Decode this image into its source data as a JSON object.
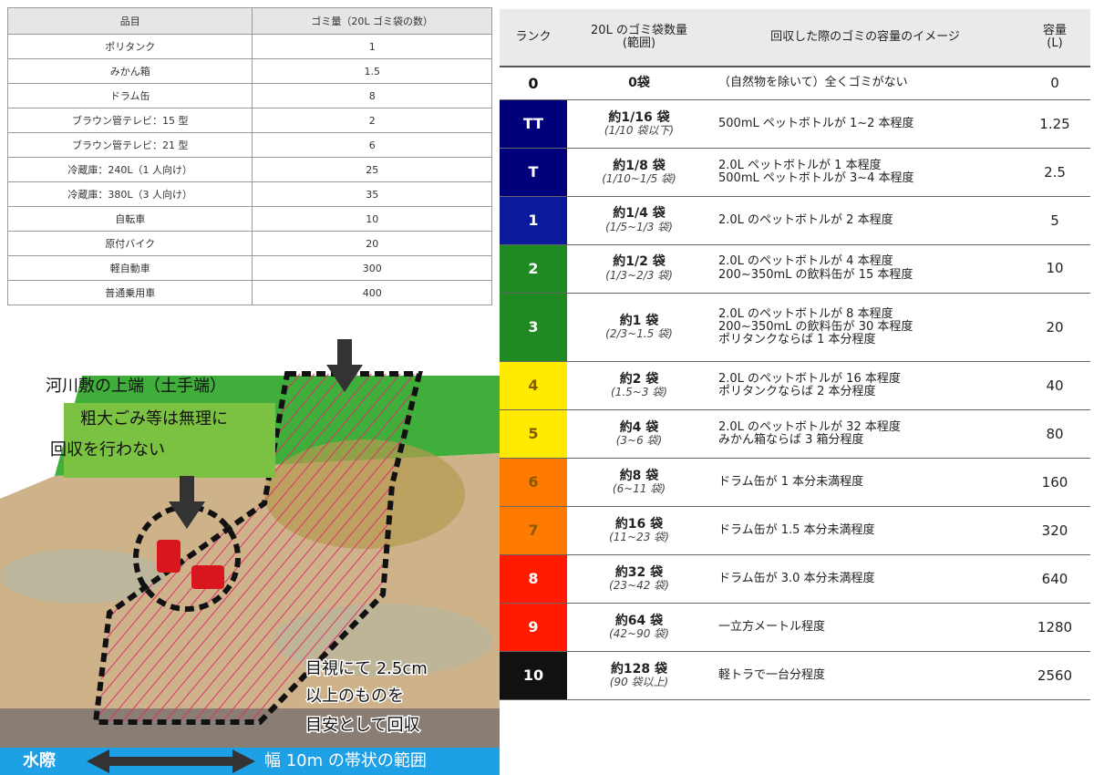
{
  "left_table": {
    "header": [
      "品目",
      "ゴミ量（20L ゴミ袋の数）"
    ],
    "rows": [
      [
        "ポリタンク",
        "1"
      ],
      [
        "みかん箱",
        "1.5"
      ],
      [
        "ドラム缶",
        "8"
      ],
      [
        "ブラウン管テレビ：15 型",
        "2"
      ],
      [
        "ブラウン管テレビ：21 型",
        "6"
      ],
      [
        "冷蔵庫：240L（1 人向け）",
        "25"
      ],
      [
        "冷蔵庫：380L（3 人向け）",
        "35"
      ],
      [
        "自転車",
        "10"
      ],
      [
        "原付バイク",
        "20"
      ],
      [
        "軽自動車",
        "300"
      ],
      [
        "普通乗用車",
        "400"
      ]
    ]
  },
  "right_table": {
    "header": [
      [
        "ランク"
      ],
      [
        "20L のゴミ袋数量",
        "(範囲)"
      ],
      [
        "回収した際のゴミの容量のイメージ"
      ],
      [
        "容量",
        "(L)"
      ]
    ],
    "rows": [
      {
        "rank": "0",
        "bags": "0袋",
        "range": null,
        "description": [
          "（自然物を除いて）全くゴミがない"
        ],
        "capacity": "0",
        "color": "#ffffff"
      },
      {
        "rank": "TT",
        "bags": "約1/16 袋",
        "range": "(1/10 袋以下)",
        "description": [
          "500mL ペットボトルが 1~2 本程度"
        ],
        "capacity": "1.25",
        "color": "#00007a"
      },
      {
        "rank": "T",
        "bags": "約1/8 袋",
        "range": "(1/10~1/5 袋)",
        "description": [
          "2.0L ペットボトルが 1 本程度",
          "500mL ペットボトルが 3~4 本程度"
        ],
        "capacity": "2.5",
        "color": "#00007a"
      },
      {
        "rank": "1",
        "bags": "約1/4 袋",
        "range": "(1/5~1/3 袋)",
        "description": [
          "2.0L のペットボトルが 2 本程度"
        ],
        "capacity": "5",
        "color": "#0b1a9a"
      },
      {
        "rank": "2",
        "bags": "約1/2 袋",
        "range": "(1/3~2/3 袋)",
        "description": [
          "2.0L のペットボトルが 4 本程度",
          "200~350mL の飲料缶が 15 本程度"
        ],
        "capacity": "10",
        "color": "#1f8a22"
      },
      {
        "rank": "3",
        "bags": "約1 袋",
        "range": "(2/3~1.5 袋)",
        "description": [
          "2.0L のペットボトルが 8 本程度",
          "200~350mL の飲料缶が 30 本程度",
          "ポリタンクならば 1 本分程度"
        ],
        "capacity": "20",
        "color": "#1f8a22"
      },
      {
        "rank": "4",
        "bags": "約2 袋",
        "range": "(1.5~3 袋)",
        "description": [
          "2.0L のペットボトルが 16 本程度",
          "ポリタンクならば 2 本分程度"
        ],
        "capacity": "40",
        "color": "#ffea00"
      },
      {
        "rank": "5",
        "bags": "約4 袋",
        "range": "(3~6 袋)",
        "description": [
          "2.0L のペットボトルが 32 本程度",
          "みかん箱ならば 3 箱分程度"
        ],
        "capacity": "80",
        "color": "#ffea00"
      },
      {
        "rank": "6",
        "bags": "約8 袋",
        "range": "(6~11 袋)",
        "description": [
          "ドラム缶が 1 本分未満程度"
        ],
        "capacity": "160",
        "color": "#ff7a00"
      },
      {
        "rank": "7",
        "bags": "約16 袋",
        "range": "(11~23 袋)",
        "description": [
          "ドラム缶が 1.5 本分未満程度"
        ],
        "capacity": "320",
        "color": "#ff7a00"
      },
      {
        "rank": "8",
        "bags": "約32 袋",
        "range": "(23~42 袋)",
        "description": [
          "ドラム缶が 3.0 本分未満程度"
        ],
        "capacity": "640",
        "color": "#ff1a00"
      },
      {
        "rank": "9",
        "bags": "約64 袋",
        "range": "(42~90 袋)",
        "description": [
          "一立方メートル程度"
        ],
        "capacity": "1280",
        "color": "#ff1a00"
      },
      {
        "rank": "10",
        "bags": "約128 袋",
        "range": "(90 袋以上)",
        "description": [
          "軽トラで一台分程度"
        ],
        "capacity": "2560",
        "color": "#111111"
      }
    ]
  },
  "illustration": {
    "bank_label": "河川敷の上端（土手端）",
    "bulky_note": [
      "粗大ごみ等は無理に",
      "回収を行わない"
    ],
    "visual_note": [
      "目視にて 2.5cm",
      "以上のものを",
      "目安として回収"
    ],
    "water_label": "水際",
    "width_label": "幅 10m の帯状の範囲"
  }
}
